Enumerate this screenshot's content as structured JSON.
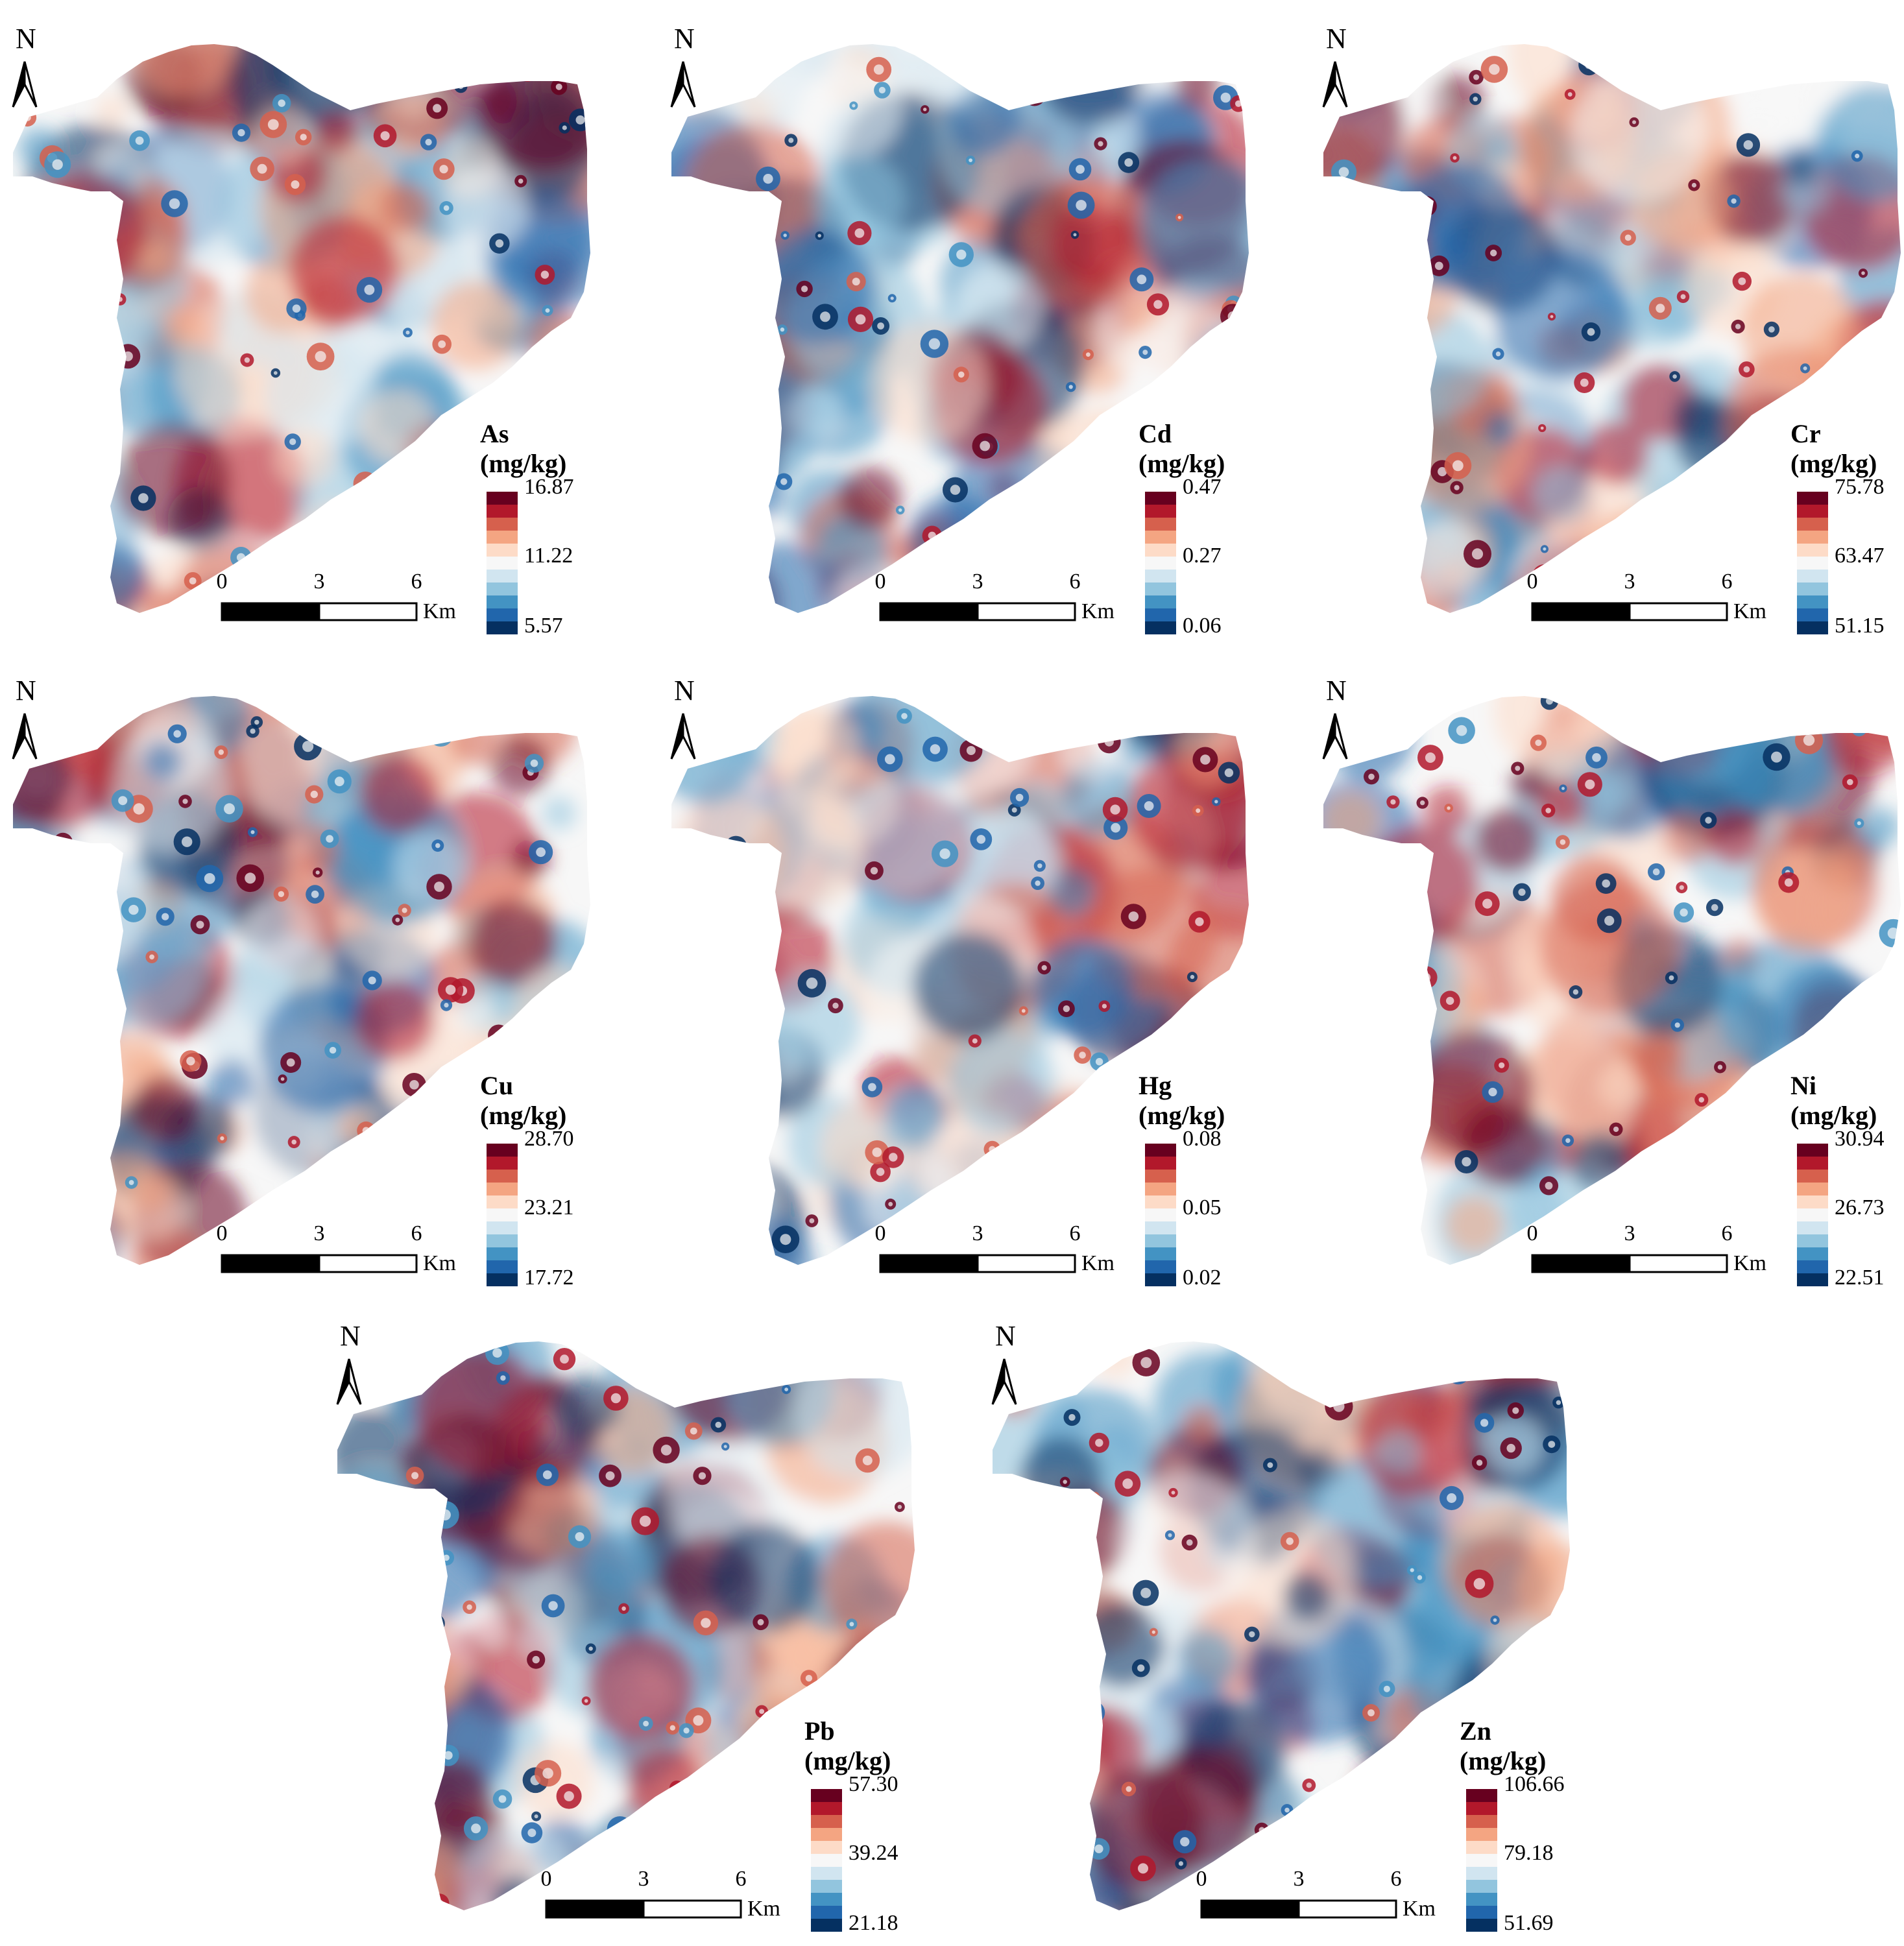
{
  "north_label": "N",
  "scale_bar": {
    "ticks": [
      "0",
      "3",
      "6"
    ],
    "unit": "Km"
  },
  "unit_label": "(mg/kg)",
  "palette": [
    "#053061",
    "#2166ac",
    "#4393c3",
    "#92c5de",
    "#d1e5f0",
    "#f7f7f7",
    "#fddbc7",
    "#f4a582",
    "#d6604d",
    "#b2182b",
    "#67001f"
  ],
  "maps": [
    {
      "element": "As",
      "legend": {
        "max": "16.87",
        "mid": "11.22",
        "min": "5.57"
      }
    },
    {
      "element": "Cd",
      "legend": {
        "max": "0.47",
        "mid": "0.27",
        "min": "0.06"
      }
    },
    {
      "element": "Cr",
      "legend": {
        "max": "75.78",
        "mid": "63.47",
        "min": "51.15"
      }
    },
    {
      "element": "Cu",
      "legend": {
        "max": "28.70",
        "mid": "23.21",
        "min": "17.72"
      }
    },
    {
      "element": "Hg",
      "legend": {
        "max": "0.08",
        "mid": "0.05",
        "min": "0.02"
      }
    },
    {
      "element": "Ni",
      "legend": {
        "max": "30.94",
        "mid": "26.73",
        "min": "22.51"
      }
    },
    {
      "element": "Pb",
      "legend": {
        "max": "57.30",
        "mid": "39.24",
        "min": "21.18"
      }
    },
    {
      "element": "Zn",
      "legend": {
        "max": "106.66",
        "mid": "79.18",
        "min": "51.69"
      }
    }
  ]
}
